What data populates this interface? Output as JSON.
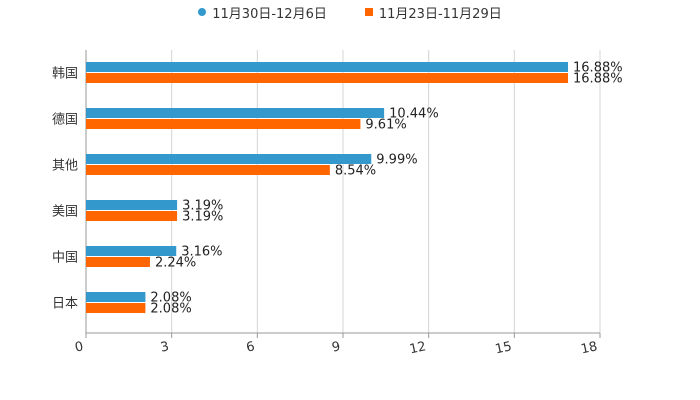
{
  "chart_data": {
    "type": "bar",
    "orientation": "horizontal",
    "title": "",
    "xlabel": "",
    "ylabel": "",
    "xlim": [
      0,
      18
    ],
    "xticks": [
      0,
      3,
      6,
      9,
      12,
      15,
      18
    ],
    "grid": true,
    "legend_position": "top-center",
    "categories": [
      "韩国",
      "德国",
      "其他",
      "美国",
      "中国",
      "日本"
    ],
    "series": [
      {
        "name": "11月30日-12月6日",
        "color": "#3399cc",
        "values": [
          16.88,
          10.44,
          9.99,
          3.19,
          3.16,
          2.08
        ],
        "labels": [
          "16.88%",
          "10.44%",
          "9.99%",
          "3.19%",
          "3.16%",
          "2.08%"
        ]
      },
      {
        "name": "11月23日-11月29日",
        "color": "#ff6600",
        "values": [
          16.88,
          9.61,
          8.54,
          3.19,
          2.24,
          2.08
        ],
        "labels": [
          "16.88%",
          "9.61%",
          "8.54%",
          "3.19%",
          "2.24%",
          "2.08%"
        ]
      }
    ]
  }
}
